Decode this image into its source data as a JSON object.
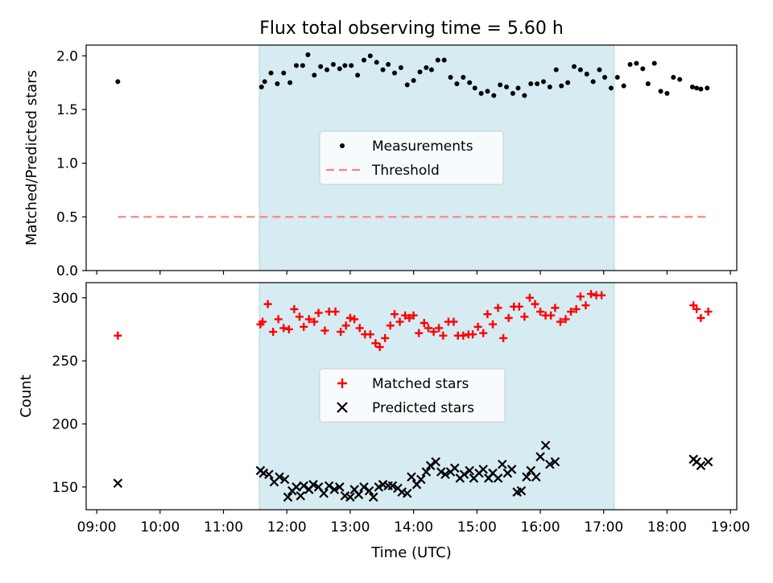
{
  "chart_data": [
    {
      "type": "scatter",
      "title": "Flux total observing time = 5.60 h",
      "xlabel": "",
      "ylabel": "Matched/Predicted stars",
      "xlim": [
        "08:50",
        "19:06"
      ],
      "ylim": [
        0,
        2.1
      ],
      "yticks": [
        "0.0",
        "0.5",
        "1.0",
        "1.5",
        "2.0"
      ],
      "shaded_region": {
        "start": "11:34",
        "end": "17:10",
        "color": "#add8e6"
      },
      "legend": {
        "position": "center",
        "entries": [
          "Measurements",
          "Threshold"
        ]
      },
      "threshold": {
        "name": "Threshold",
        "value": 0.5,
        "x_start": "09:20",
        "x_end": "18:40",
        "color": "#ff7f7f",
        "style": "dashed"
      },
      "series": [
        {
          "name": "Measurements",
          "marker": "dot",
          "color": "#000000",
          "points": [
            [
              "09:20",
              1.76
            ],
            [
              "11:36",
              1.71
            ],
            [
              "11:39",
              1.76
            ],
            [
              "11:45",
              1.84
            ],
            [
              "11:51",
              1.74
            ],
            [
              "11:57",
              1.84
            ],
            [
              "12:03",
              1.75
            ],
            [
              "12:09",
              1.91
            ],
            [
              "12:15",
              1.91
            ],
            [
              "12:20",
              2.01
            ],
            [
              "12:26",
              1.82
            ],
            [
              "12:32",
              1.9
            ],
            [
              "12:38",
              1.87
            ],
            [
              "12:44",
              1.92
            ],
            [
              "12:50",
              1.88
            ],
            [
              "12:55",
              1.91
            ],
            [
              "13:01",
              1.91
            ],
            [
              "13:07",
              1.82
            ],
            [
              "13:13",
              1.96
            ],
            [
              "13:19",
              2.0
            ],
            [
              "13:25",
              1.94
            ],
            [
              "13:31",
              1.87
            ],
            [
              "13:36",
              1.92
            ],
            [
              "13:42",
              1.84
            ],
            [
              "13:48",
              1.89
            ],
            [
              "13:54",
              1.73
            ],
            [
              "14:00",
              1.77
            ],
            [
              "14:06",
              1.85
            ],
            [
              "14:12",
              1.89
            ],
            [
              "14:17",
              1.87
            ],
            [
              "14:23",
              1.96
            ],
            [
              "14:29",
              1.96
            ],
            [
              "14:35",
              1.8
            ],
            [
              "14:41",
              1.74
            ],
            [
              "14:47",
              1.8
            ],
            [
              "14:53",
              1.75
            ],
            [
              "14:58",
              1.7
            ],
            [
              "15:04",
              1.65
            ],
            [
              "15:10",
              1.67
            ],
            [
              "15:16",
              1.63
            ],
            [
              "15:22",
              1.73
            ],
            [
              "15:28",
              1.71
            ],
            [
              "15:34",
              1.65
            ],
            [
              "15:39",
              1.7
            ],
            [
              "15:45",
              1.63
            ],
            [
              "15:51",
              1.74
            ],
            [
              "15:57",
              1.74
            ],
            [
              "16:03",
              1.76
            ],
            [
              "16:09",
              1.71
            ],
            [
              "16:15",
              1.87
            ],
            [
              "16:20",
              1.72
            ],
            [
              "16:26",
              1.75
            ],
            [
              "16:32",
              1.9
            ],
            [
              "16:38",
              1.87
            ],
            [
              "16:44",
              1.83
            ],
            [
              "16:50",
              1.76
            ],
            [
              "16:56",
              1.87
            ],
            [
              "17:01",
              1.8
            ],
            [
              "17:07",
              1.7
            ],
            [
              "17:13",
              1.8
            ],
            [
              "17:19",
              1.72
            ],
            [
              "17:25",
              1.92
            ],
            [
              "17:31",
              1.93
            ],
            [
              "17:37",
              1.88
            ],
            [
              "17:42",
              1.74
            ],
            [
              "17:48",
              1.93
            ],
            [
              "17:54",
              1.67
            ],
            [
              "18:00",
              1.65
            ],
            [
              "18:06",
              1.8
            ],
            [
              "18:12",
              1.78
            ],
            [
              "18:24",
              1.71
            ],
            [
              "18:28",
              1.7
            ],
            [
              "18:32",
              1.69
            ],
            [
              "18:38",
              1.7
            ]
          ]
        }
      ]
    },
    {
      "type": "scatter",
      "title": "",
      "xlabel": "Time (UTC)",
      "ylabel": "Count",
      "xlim": [
        "08:50",
        "19:06"
      ],
      "ylim": [
        132,
        312
      ],
      "yticks": [
        "150",
        "200",
        "250",
        "300"
      ],
      "xticks": [
        "09:00",
        "10:00",
        "11:00",
        "12:00",
        "13:00",
        "14:00",
        "15:00",
        "16:00",
        "17:00",
        "18:00",
        "19:00"
      ],
      "shaded_region": {
        "start": "11:34",
        "end": "17:10",
        "color": "#add8e6"
      },
      "legend": {
        "position": "center",
        "entries": [
          "Matched stars",
          "Predicted stars"
        ]
      },
      "series": [
        {
          "name": "Matched stars",
          "marker": "plus",
          "color": "#ff0000",
          "points": [
            [
              "09:20",
              270
            ],
            [
              "11:35",
              279
            ],
            [
              "11:37",
              281
            ],
            [
              "11:42",
              295
            ],
            [
              "11:47",
              273
            ],
            [
              "11:52",
              283
            ],
            [
              "11:57",
              276
            ],
            [
              "12:02",
              275
            ],
            [
              "12:07",
              291
            ],
            [
              "12:12",
              285
            ],
            [
              "12:16",
              277
            ],
            [
              "12:21",
              283
            ],
            [
              "12:26",
              281
            ],
            [
              "12:30",
              288
            ],
            [
              "12:36",
              274
            ],
            [
              "12:40",
              289
            ],
            [
              "12:46",
              289
            ],
            [
              "12:51",
              273
            ],
            [
              "12:56",
              278
            ],
            [
              "13:00",
              284
            ],
            [
              "13:04",
              283
            ],
            [
              "13:09",
              276
            ],
            [
              "13:14",
              271
            ],
            [
              "13:19",
              271
            ],
            [
              "13:24",
              264
            ],
            [
              "13:28",
              261
            ],
            [
              "13:33",
              268
            ],
            [
              "13:38",
              278
            ],
            [
              "13:42",
              287
            ],
            [
              "13:47",
              281
            ],
            [
              "13:52",
              286
            ],
            [
              "13:56",
              284
            ],
            [
              "14:00",
              286
            ],
            [
              "14:05",
              272
            ],
            [
              "14:10",
              280
            ],
            [
              "14:14",
              276
            ],
            [
              "14:19",
              273
            ],
            [
              "14:24",
              276
            ],
            [
              "14:28",
              270
            ],
            [
              "14:33",
              281
            ],
            [
              "14:38",
              281
            ],
            [
              "14:42",
              270
            ],
            [
              "14:47",
              270
            ],
            [
              "14:52",
              271
            ],
            [
              "14:56",
              271
            ],
            [
              "15:01",
              277
            ],
            [
              "15:06",
              272
            ],
            [
              "15:10",
              287
            ],
            [
              "15:15",
              279
            ],
            [
              "15:20",
              292
            ],
            [
              "15:25",
              268
            ],
            [
              "15:30",
              284
            ],
            [
              "15:35",
              293
            ],
            [
              "15:40",
              293
            ],
            [
              "15:45",
              285
            ],
            [
              "15:50",
              300
            ],
            [
              "15:55",
              295
            ],
            [
              "16:00",
              289
            ],
            [
              "16:05",
              286
            ],
            [
              "16:10",
              286
            ],
            [
              "16:14",
              292
            ],
            [
              "16:19",
              281
            ],
            [
              "16:24",
              283
            ],
            [
              "16:29",
              289
            ],
            [
              "16:34",
              291
            ],
            [
              "16:38",
              301
            ],
            [
              "16:43",
              294
            ],
            [
              "16:48",
              303
            ],
            [
              "16:53",
              302
            ],
            [
              "16:58",
              302
            ],
            [
              "18:25",
              294
            ],
            [
              "18:28",
              291
            ],
            [
              "18:32",
              284
            ],
            [
              "18:39",
              289
            ]
          ]
        },
        {
          "name": "Predicted stars",
          "marker": "x",
          "color": "#000000",
          "points": [
            [
              "09:20",
              153
            ],
            [
              "11:35",
              163
            ],
            [
              "11:38",
              161
            ],
            [
              "11:43",
              160
            ],
            [
              "11:48",
              154
            ],
            [
              "11:53",
              158
            ],
            [
              "11:58",
              156
            ],
            [
              "12:01",
              142
            ],
            [
              "12:05",
              147
            ],
            [
              "12:09",
              150
            ],
            [
              "12:13",
              143
            ],
            [
              "12:16",
              151
            ],
            [
              "12:21",
              148
            ],
            [
              "12:25",
              152
            ],
            [
              "12:30",
              150
            ],
            [
              "12:35",
              145
            ],
            [
              "12:40",
              151
            ],
            [
              "12:45",
              148
            ],
            [
              "12:50",
              150
            ],
            [
              "12:55",
              143
            ],
            [
              "13:00",
              142
            ],
            [
              "13:04",
              148
            ],
            [
              "13:08",
              144
            ],
            [
              "13:13",
              150
            ],
            [
              "13:18",
              147
            ],
            [
              "13:22",
              142
            ],
            [
              "13:27",
              150
            ],
            [
              "13:31",
              152
            ],
            [
              "13:36",
              151
            ],
            [
              "13:40",
              151
            ],
            [
              "13:45",
              149
            ],
            [
              "13:49",
              146
            ],
            [
              "13:54",
              145
            ],
            [
              "13:58",
              158
            ],
            [
              "14:03",
              152
            ],
            [
              "14:07",
              156
            ],
            [
              "14:12",
              162
            ],
            [
              "14:16",
              167
            ],
            [
              "14:21",
              170
            ],
            [
              "14:26",
              162
            ],
            [
              "14:30",
              160
            ],
            [
              "14:35",
              162
            ],
            [
              "14:39",
              165
            ],
            [
              "14:44",
              157
            ],
            [
              "14:48",
              160
            ],
            [
              "14:53",
              163
            ],
            [
              "14:57",
              157
            ],
            [
              "15:02",
              161
            ],
            [
              "15:06",
              164
            ],
            [
              "15:11",
              157
            ],
            [
              "15:15",
              161
            ],
            [
              "15:20",
              157
            ],
            [
              "15:24",
              168
            ],
            [
              "15:29",
              161
            ],
            [
              "15:33",
              164
            ],
            [
              "15:38",
              146
            ],
            [
              "15:42",
              147
            ],
            [
              "15:47",
              158
            ],
            [
              "15:51",
              163
            ],
            [
              "15:56",
              158
            ],
            [
              "16:00",
              174
            ],
            [
              "16:05",
              183
            ],
            [
              "16:09",
              168
            ],
            [
              "16:14",
              170
            ],
            [
              "18:25",
              172
            ],
            [
              "18:28",
              170
            ],
            [
              "18:32",
              167
            ],
            [
              "18:39",
              170
            ]
          ]
        }
      ]
    }
  ]
}
